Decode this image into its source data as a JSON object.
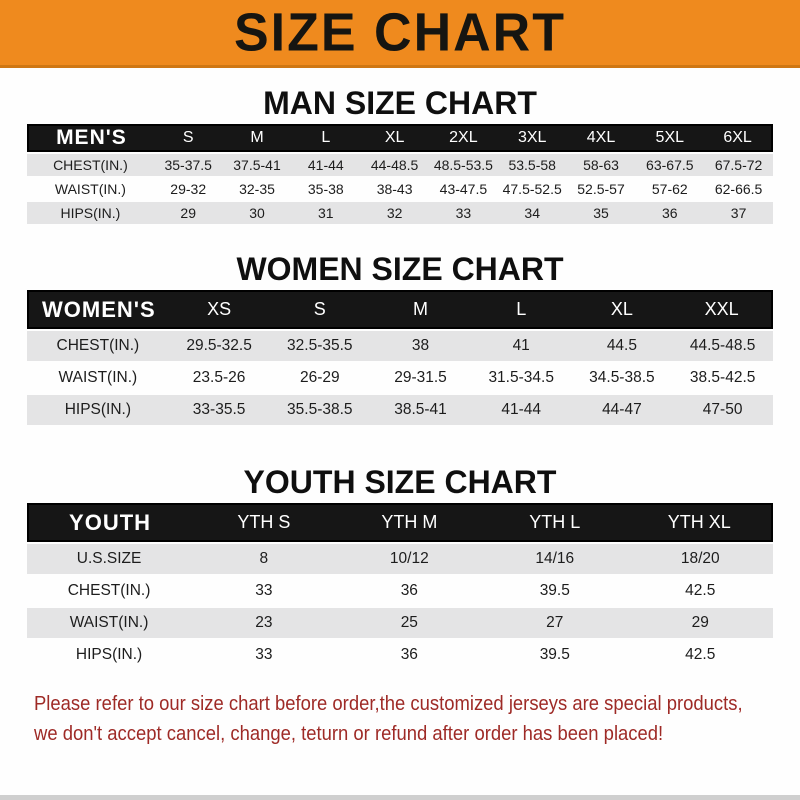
{
  "banner": {
    "title": "SIZE CHART"
  },
  "sections": [
    {
      "heading": "MAN SIZE CHART",
      "label": "MEN'S",
      "columns": [
        "S",
        "M",
        "L",
        "XL",
        "2XL",
        "3XL",
        "4XL",
        "5XL",
        "6XL"
      ],
      "rows": [
        {
          "label": "CHEST(IN.)",
          "values": [
            "35-37.5",
            "37.5-41",
            "41-44",
            "44-48.5",
            "48.5-53.5",
            "53.5-58",
            "58-63",
            "63-67.5",
            "67.5-72"
          ]
        },
        {
          "label": "WAIST(IN.)",
          "values": [
            "29-32",
            "32-35",
            "35-38",
            "38-43",
            "43-47.5",
            "47.5-52.5",
            "52.5-57",
            "57-62",
            "62-66.5"
          ]
        },
        {
          "label": "HIPS(IN.)",
          "values": [
            "29",
            "30",
            "31",
            "32",
            "33",
            "34",
            "35",
            "36",
            "37"
          ]
        }
      ]
    },
    {
      "heading": "WOMEN SIZE CHART",
      "label": "WOMEN'S",
      "columns": [
        "XS",
        "S",
        "M",
        "L",
        "XL",
        "XXL"
      ],
      "rows": [
        {
          "label": "CHEST(IN.)",
          "values": [
            "29.5-32.5",
            "32.5-35.5",
            "38",
            "41",
            "44.5",
            "44.5-48.5"
          ]
        },
        {
          "label": "WAIST(IN.)",
          "values": [
            "23.5-26",
            "26-29",
            "29-31.5",
            "31.5-34.5",
            "34.5-38.5",
            "38.5-42.5"
          ]
        },
        {
          "label": "HIPS(IN.)",
          "values": [
            "33-35.5",
            "35.5-38.5",
            "38.5-41",
            "41-44",
            "44-47",
            "47-50"
          ]
        }
      ]
    },
    {
      "heading": "YOUTH SIZE CHART",
      "label": "YOUTH",
      "columns": [
        "YTH S",
        "YTH M",
        "YTH L",
        "YTH XL"
      ],
      "rows": [
        {
          "label": "U.S.SIZE",
          "values": [
            "8",
            "10/12",
            "14/16",
            "18/20"
          ]
        },
        {
          "label": "CHEST(IN.)",
          "values": [
            "33",
            "36",
            "39.5",
            "42.5"
          ]
        },
        {
          "label": "WAIST(IN.)",
          "values": [
            "23",
            "25",
            "27",
            "29"
          ]
        },
        {
          "label": "HIPS(IN.)",
          "values": [
            "33",
            "36",
            "39.5",
            "42.5"
          ]
        }
      ]
    }
  ],
  "footer": {
    "line1": "Please refer to our size chart before order,the customized jerseys are special products,",
    "line2": "we don't accept cancel, change, teturn or refund after order has been placed!"
  },
  "colors": {
    "banner_bg": "#EF8A1E",
    "header_bar": "#161616",
    "stripe_row": "#E4E4E5",
    "footer_red": "#9E2A26"
  }
}
